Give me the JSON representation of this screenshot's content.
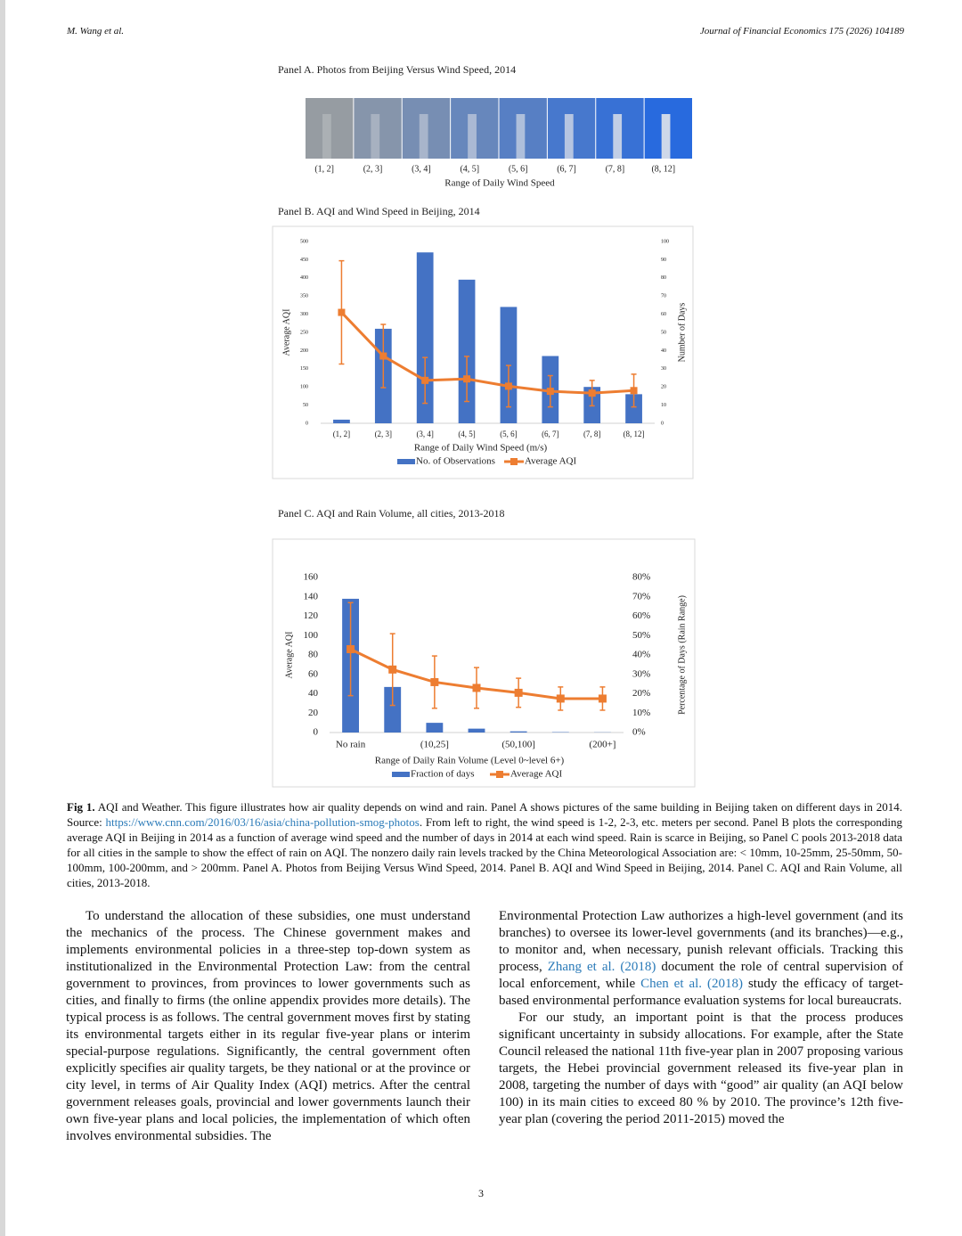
{
  "header": {
    "author": "M. Wang et al.",
    "journal": "Journal of Financial Economics 175 (2026) 104189"
  },
  "panel_a": {
    "title": "Panel A. Photos from Beijing Versus Wind Speed, 2014",
    "categories": [
      "(1, 2]",
      "(2, 3]",
      "(3, 4]",
      "(4, 5]",
      "(5, 6]",
      "(6, 7]",
      "(7, 8]",
      "(8, 12]"
    ],
    "x_label": "Range of Daily Wind Speed"
  },
  "chart_data": [
    {
      "type": "bar_line",
      "title": "Panel B. AQI and Wind Speed in Beijing, 2014",
      "categories": [
        "(1, 2]",
        "(2, 3]",
        "(3, 4]",
        "(4, 5]",
        "(5, 6]",
        "(6, 7]",
        "(7, 8]",
        "(8, 12]"
      ],
      "x_label": "Range of Daily Wind Speed (m/s)",
      "y_label": "Average AQI",
      "y2_label": "Number of Days",
      "ylim": [
        0,
        500
      ],
      "yticks": [
        0,
        50,
        100,
        150,
        200,
        250,
        300,
        350,
        400,
        450,
        500
      ],
      "y2lim": [
        0,
        100
      ],
      "y2ticks": [
        0,
        10,
        20,
        30,
        40,
        50,
        60,
        70,
        80,
        90,
        100
      ],
      "series": [
        {
          "name": "No. of Observations",
          "type": "bar",
          "axis": "y2",
          "color": "#4472c4",
          "values": [
            2,
            52,
            94,
            79,
            64,
            37,
            20,
            16
          ]
        },
        {
          "name": "Average AQI",
          "type": "line",
          "color": "#ed7d31",
          "values": [
            305,
            185,
            118,
            122,
            102,
            88,
            83,
            90
          ],
          "errors": [
            142,
            87,
            63,
            62,
            57,
            43,
            35,
            45
          ]
        }
      ]
    },
    {
      "type": "bar_line",
      "title": "Panel C. AQI and Rain Volume, all cities, 2013-2018",
      "categories": [
        "No rain",
        null,
        "(10,25]",
        null,
        "(50,100]",
        null,
        "(200+]"
      ],
      "x_label": "Range of Daily Rain Volume (Level 0~level 6+)",
      "y_label": "Average AQI",
      "y2_label": "Percentage of Days (Rain Range)",
      "ylim": [
        0,
        160
      ],
      "yticks": [
        0,
        20,
        40,
        60,
        80,
        100,
        120,
        140,
        160
      ],
      "y2lim": [
        0,
        80
      ],
      "y2ticks": [
        {
          "value": 0,
          "label": "0%"
        },
        {
          "value": 10,
          "label": "10%"
        },
        {
          "value": 20,
          "label": "20%"
        },
        {
          "value": 30,
          "label": "30%"
        },
        {
          "value": 40,
          "label": "40%"
        },
        {
          "value": 50,
          "label": "50%"
        },
        {
          "value": 60,
          "label": "60%"
        },
        {
          "value": 70,
          "label": "70%"
        },
        {
          "value": 80,
          "label": "80%"
        }
      ],
      "series": [
        {
          "name": "Fraction of days",
          "type": "bar",
          "axis": "y2",
          "color": "#4472c4",
          "values": [
            69,
            23.5,
            5,
            2,
            0.6,
            0.2,
            0.1
          ]
        },
        {
          "name": "Average AQI",
          "type": "line",
          "color": "#ed7d31",
          "values": [
            86,
            65,
            52,
            46,
            41,
            35,
            35
          ],
          "errors": [
            48,
            37,
            27,
            21,
            15,
            12,
            12
          ]
        }
      ]
    }
  ],
  "caption": {
    "label": "Fig 1.",
    "parts": [
      " AQI and Weather. This figure illustrates how air quality depends on wind and rain. Panel A shows pictures of the same building in Beijing taken on different days in 2014. Source: ",
      "https://www.cnn.com/2016/03/16/asia/china-pollution-smog-photos",
      ". From left to right, the wind speed is 1-2, 2-3, etc. meters per second. Panel B plots the corresponding average AQI in Beijing in 2014 as a function of average wind speed and the number of days in 2014 at each wind speed. Rain is scarce in Beijing, so Panel C pools 2013-2018 data for all cities in the sample to show the effect of rain on AQI. The nonzero daily rain levels tracked by the China Meteorological Association are: < 10mm, 10-25mm, 25-50mm, 50-100mm, 100-200mm, and > 200mm. Panel A. Photos from Beijing Versus Wind Speed, 2014. Panel B. AQI and Wind Speed in Beijing, 2014. Panel C. AQI and Rain Volume, all cities, 2013-2018."
    ]
  },
  "body": {
    "left": [
      "To understand the allocation of these subsidies, one must understand the mechanics of the process. The Chinese government makes and implements environmental policies in a three-step top-down system as institutionalized in the Environmental Protection Law: from the central government to provinces, from provinces to lower governments such as cities, and finally to firms (the online appendix provides more details). The typical process is as follows. The central government moves first by stating its environmental targets either in its regular five-year plans or interim special-purpose regulations. Significantly, the central government often explicitly specifies air quality targets, be they national or at the province or city level, in terms of Air Quality Index (AQI) metrics. After the central government releases goals, provincial and lower governments launch their own five-year plans and local policies, the implementation of which often involves environmental subsidies. The"
    ],
    "right": [
      [
        "Environmental Protection Law authorizes a high-level government (and its branches) to oversee its lower-level governments (and its branches)—e.g., to monitor and, when necessary, punish relevant officials. Tracking this process, ",
        "Zhang et al. (2018)",
        " document the role of central supervision of local enforcement, while ",
        "Chen et al. (2018)",
        " study the efficacy of target-based environmental performance evaluation systems for local bureaucrats."
      ],
      [
        "For our study, an important point is that the process produces significant uncertainty in subsidy allocations. For example, after the State Council released the national 11th five-year plan in 2007 proposing various targets, the Hebei provincial government released its five-year plan in 2008, targeting the number of days with “good” air quality (an AQI below 100) in its main cities to exceed 80 % by 2010. The province’s 12th five-year plan (covering the period 2011-2015) moved the"
      ]
    ]
  },
  "page_number": "3"
}
